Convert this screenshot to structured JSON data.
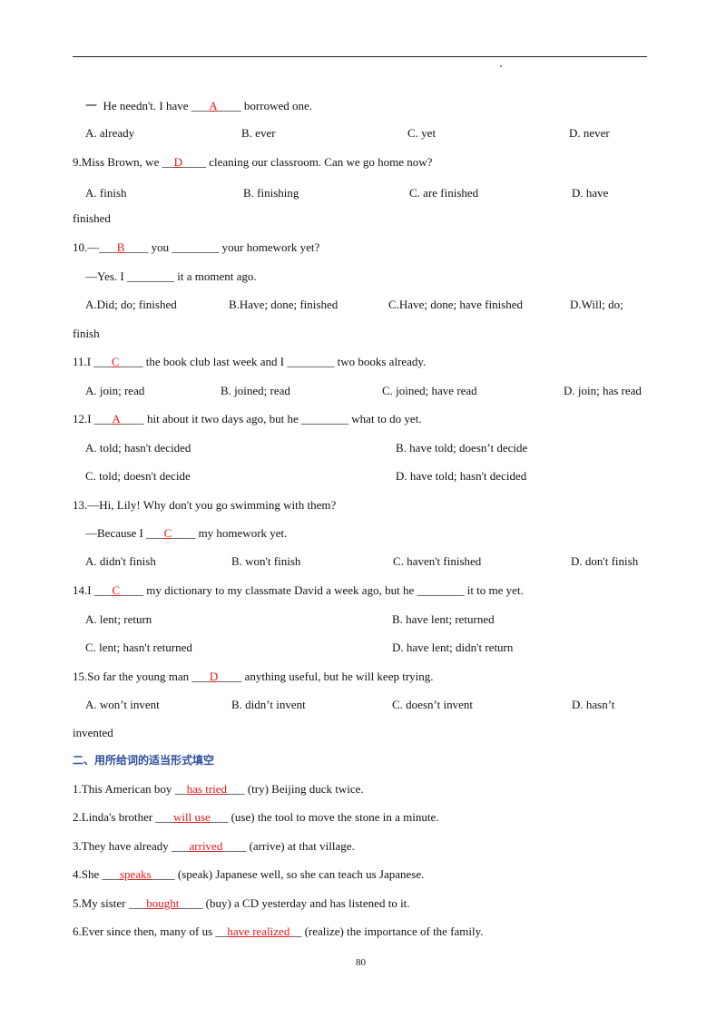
{
  "items": [
    {
      "before": "一  He needn't. I have ___",
      "answer": "A",
      "after": "____ borrowed one."
    },
    {
      "options": [
        "A. already",
        "B. ever",
        "C. yet",
        "D. never"
      ]
    },
    {
      "before": "9.Miss Brown, we __",
      "answer": "D",
      "after": "____ cleaning our classroom. Can we go home now?"
    },
    {
      "options": [
        "A. finish",
        "B. finishing",
        "C. are finished",
        "D. have"
      ]
    },
    {
      "text": "finished"
    },
    {
      "before": "10.—___",
      "answer": "B",
      "after": "____ you ________ your homework yet?"
    },
    {
      "text": "—Yes. I ________ it a moment ago."
    },
    {
      "options": [
        "A.Did; do; finished",
        "B.Have; done; finished",
        "C.Have; done; have finished",
        "D.Will; do;"
      ]
    },
    {
      "text": "finish"
    },
    {
      "before": "11.I ___",
      "answer": "C",
      "after": "____ the book club last week and I ________ two books already."
    },
    {
      "options": [
        "A. join; read",
        "B. joined; read",
        "C. joined; have read",
        "D. join; has read"
      ]
    },
    {
      "before": "12.I ___",
      "answer": "A",
      "after": "____ hit about it two days ago, but he ________ what to do yet."
    },
    {
      "options": [
        "A. told; hasn't decided",
        "B. have told; doesn’t decide"
      ]
    },
    {
      "options": [
        "C. told; doesn't decide",
        "D. have told; hasn't decided"
      ]
    },
    {
      "text": "13.—Hi, Lily! Why don't you go swimming with them?"
    },
    {
      "before": "—Because I ___",
      "answer": "C",
      "after": "____ my homework yet."
    },
    {
      "options": [
        "A. didn't finish",
        "B. won't finish",
        "C. haven't finished",
        "D. don't finish"
      ]
    },
    {
      "before": "14.I ___",
      "answer": "C",
      "after": "____ my dictionary to my classmate David a week ago, but he ________ it to me yet."
    },
    {
      "options": [
        "A. lent; return",
        "B. have lent; returned"
      ]
    },
    {
      "options": [
        "C. lent; hasn't returned",
        "D. have lent; didn't return"
      ]
    },
    {
      "before": "15.So far the young man ___",
      "answer": "D",
      "after": "____ anything useful, but he will keep trying."
    },
    {
      "options": [
        "A. won’t invent",
        "B. didn’t invent",
        "C. doesn’t invent",
        "D. hasn’t"
      ]
    },
    {
      "text": "invented"
    }
  ],
  "section_title": "二、用所给词的适当形式填空",
  "fill_in": [
    {
      "before": "1.This American boy __",
      "answer": "has tried",
      "after": "___ (try) Beijing duck twice."
    },
    {
      "before": "2.Linda's brother ___",
      "answer": "will use",
      "after": "___ (use) the tool to move the stone in a minute."
    },
    {
      "before": "3.They have already ___",
      "answer": "arrived",
      "after": "____ (arrive) at that village."
    },
    {
      "before": "4.She ___",
      "answer": "speaks",
      "after": "____ (speak) Japanese well, so she can teach us Japanese."
    },
    {
      "before": "5.My sister ___",
      "answer": "bought",
      "after": "____ (buy) a CD yesterday and has listened to it."
    },
    {
      "before": "6.Ever since then, many of us __",
      "answer": "have realized",
      "after": "__ (realize) the importance of the family."
    }
  ],
  "page_number": "80"
}
